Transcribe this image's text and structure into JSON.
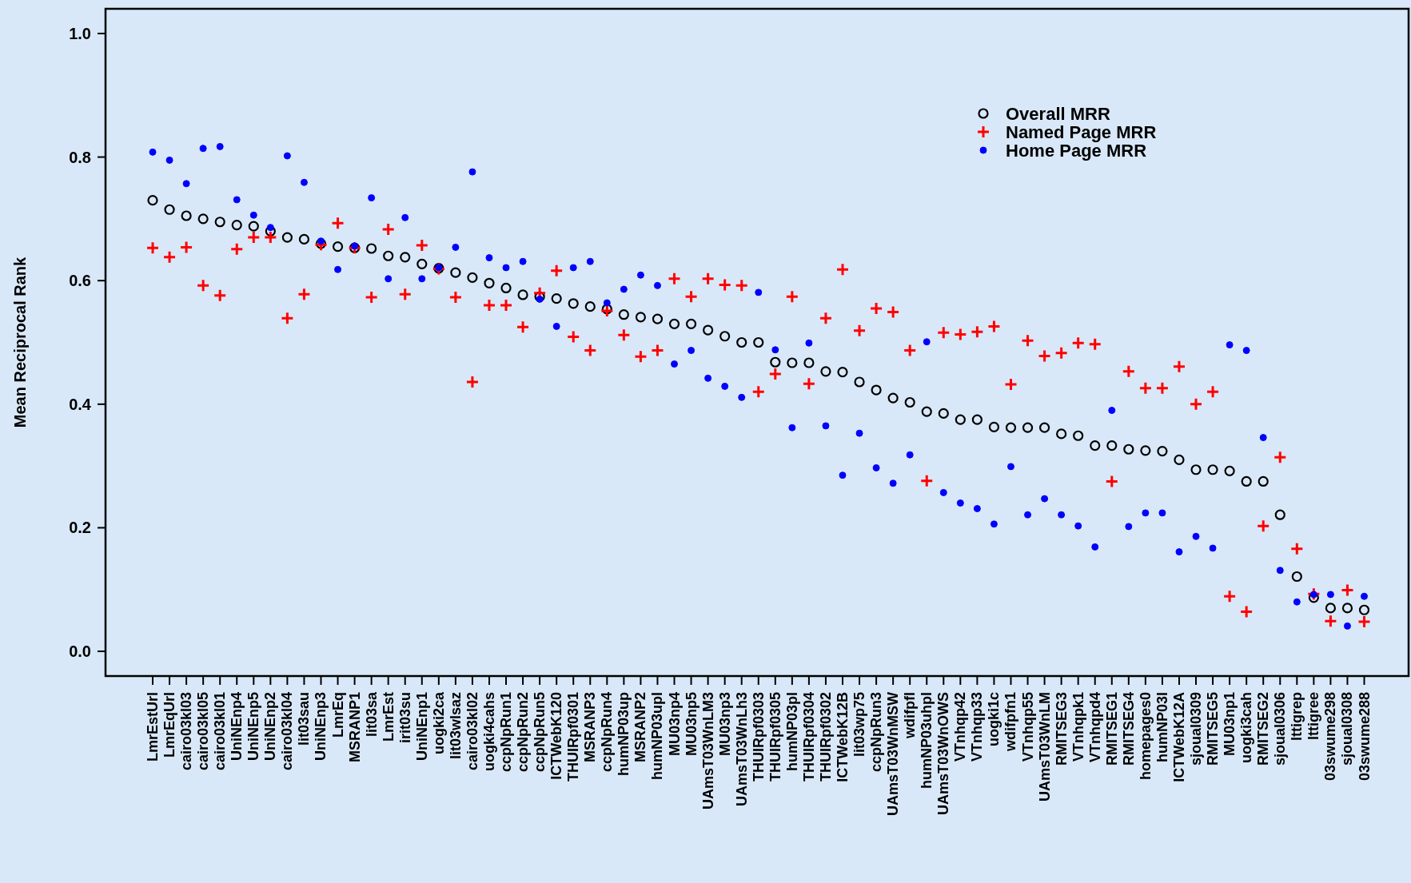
{
  "chart_data": {
    "type": "scatter",
    "ylabel": "Mean Reciprocal Rank",
    "categories": [
      "LmrEstUrl",
      "LmrEqUrl",
      "cairo03kl03",
      "cairo03kl05",
      "cairo03kl01",
      "UniNEnp4",
      "UniNEnp5",
      "UniNEnp2",
      "cairo03kl04",
      "lit03sau",
      "UniNEnp3",
      "LmrEq",
      "MSRANP1",
      "lit03sa",
      "LmrEst",
      "irit03su",
      "UniNEnp1",
      "uogki2ca",
      "lit03wlsaz",
      "cairo03kl02",
      "uogki4cahs",
      "ccpNpRun1",
      "ccpNpRun2",
      "ccpNpRun5",
      "ICTWebK120",
      "THUIRpf0301",
      "MSRANP3",
      "ccpNpRun4",
      "humNP03up",
      "MSRANP2",
      "humNP03upl",
      "MU03np4",
      "MU03np5",
      "UAmsT03WnLM3",
      "MU03np3",
      "UAmsT03WnLh3",
      "THUIRpf0303",
      "THUIRpf0305",
      "humNP03pl",
      "THUIRpf0304",
      "THUIRpf0302",
      "ICTWebK12B",
      "lit03wp75",
      "ccpNpRun3",
      "UAmsT03WnMSW",
      "wdifpfl",
      "humNP03uhpl",
      "UAmsT03WnOWS",
      "VTnhqp42",
      "VTnhqp33",
      "uogki1c",
      "wdifpfn1",
      "VTnhqp55",
      "UAmsT03WnLM",
      "RMITSEG3",
      "VTnhqpk1",
      "VTnhqpd4",
      "RMITSEG1",
      "RMITSEG4",
      "homepages0",
      "humNP03l",
      "ICTWebK12A",
      "sjoual0309",
      "RMITSEG5",
      "MU03np1",
      "uogki3cah",
      "RMITSEG2",
      "sjoual0306",
      "lttigrep",
      "lttigree",
      "03swume298",
      "sjoual0308",
      "03swume288"
    ],
    "series": [
      {
        "name": "Overall MRR",
        "color": "#000000",
        "marker": "circle",
        "values": [
          0.73,
          0.715,
          0.705,
          0.7,
          0.695,
          0.69,
          0.688,
          0.68,
          0.67,
          0.667,
          0.66,
          0.655,
          0.653,
          0.652,
          0.64,
          0.638,
          0.627,
          0.62,
          0.613,
          0.605,
          0.596,
          0.588,
          0.577,
          0.574,
          0.571,
          0.563,
          0.558,
          0.554,
          0.545,
          0.541,
          0.538,
          0.53,
          0.53,
          0.52,
          0.51,
          0.5,
          0.5,
          0.468,
          0.467,
          0.467,
          0.453,
          0.452,
          0.436,
          0.423,
          0.41,
          0.403,
          0.388,
          0.385,
          0.375,
          0.375,
          0.363,
          0.362,
          0.362,
          0.362,
          0.352,
          0.349,
          0.333,
          0.333,
          0.327,
          0.325,
          0.324,
          0.31,
          0.294,
          0.294,
          0.292,
          0.275,
          0.275,
          0.221,
          0.121,
          0.087,
          0.07,
          0.07,
          0.067
        ]
      },
      {
        "name": "Named Page MRR",
        "color": "#ff0000",
        "marker": "cross",
        "values": [
          0.653,
          0.638,
          0.654,
          0.592,
          0.576,
          0.651,
          0.67,
          0.67,
          0.539,
          0.578,
          0.658,
          0.693,
          0.653,
          0.573,
          0.683,
          0.578,
          0.657,
          0.619,
          0.573,
          0.436,
          0.56,
          0.56,
          0.525,
          0.58,
          0.616,
          0.509,
          0.487,
          0.551,
          0.512,
          0.477,
          0.487,
          0.603,
          0.574,
          0.603,
          0.593,
          0.592,
          0.42,
          0.449,
          0.574,
          0.433,
          0.539,
          0.618,
          0.519,
          0.555,
          0.549,
          0.487,
          0.276,
          0.516,
          0.513,
          0.517,
          0.526,
          0.432,
          0.503,
          0.478,
          0.483,
          0.499,
          0.497,
          0.275,
          0.453,
          0.426,
          0.426,
          0.461,
          0.4,
          0.42,
          0.089,
          0.064,
          0.203,
          0.314,
          0.166,
          0.093,
          0.049,
          0.099,
          0.048
        ]
      },
      {
        "name": "Home Page MRR",
        "color": "#0000ff",
        "marker": "circle",
        "values": [
          0.808,
          0.795,
          0.757,
          0.814,
          0.817,
          0.731,
          0.706,
          0.686,
          0.802,
          0.759,
          0.664,
          0.618,
          0.656,
          0.734,
          0.603,
          0.702,
          0.603,
          0.621,
          0.654,
          0.776,
          0.637,
          0.621,
          0.631,
          0.57,
          0.526,
          0.621,
          0.631,
          0.564,
          0.586,
          0.609,
          0.592,
          0.465,
          0.487,
          0.442,
          0.429,
          0.411,
          0.581,
          0.488,
          0.362,
          0.499,
          0.365,
          0.285,
          0.353,
          0.297,
          0.272,
          0.318,
          0.501,
          0.257,
          0.24,
          0.231,
          0.206,
          0.299,
          0.221,
          0.247,
          0.221,
          0.203,
          0.169,
          0.39,
          0.202,
          0.224,
          0.224,
          0.161,
          0.186,
          0.167,
          0.496,
          0.487,
          0.346,
          0.131,
          0.08,
          0.092,
          0.092,
          0.041,
          0.089
        ]
      }
    ],
    "ylim": [
      -0.04,
      1.04
    ],
    "yticks": [
      {
        "value": 0,
        "label": "0.0"
      },
      {
        "value": 0.2,
        "label": "0.2"
      },
      {
        "value": 0.4,
        "label": "0.4"
      },
      {
        "value": 0.6,
        "label": "0.6"
      },
      {
        "value": 0.8,
        "label": "0.8"
      },
      {
        "value": 1,
        "label": "1.0"
      }
    ],
    "legend": "top right",
    "grid": false
  }
}
